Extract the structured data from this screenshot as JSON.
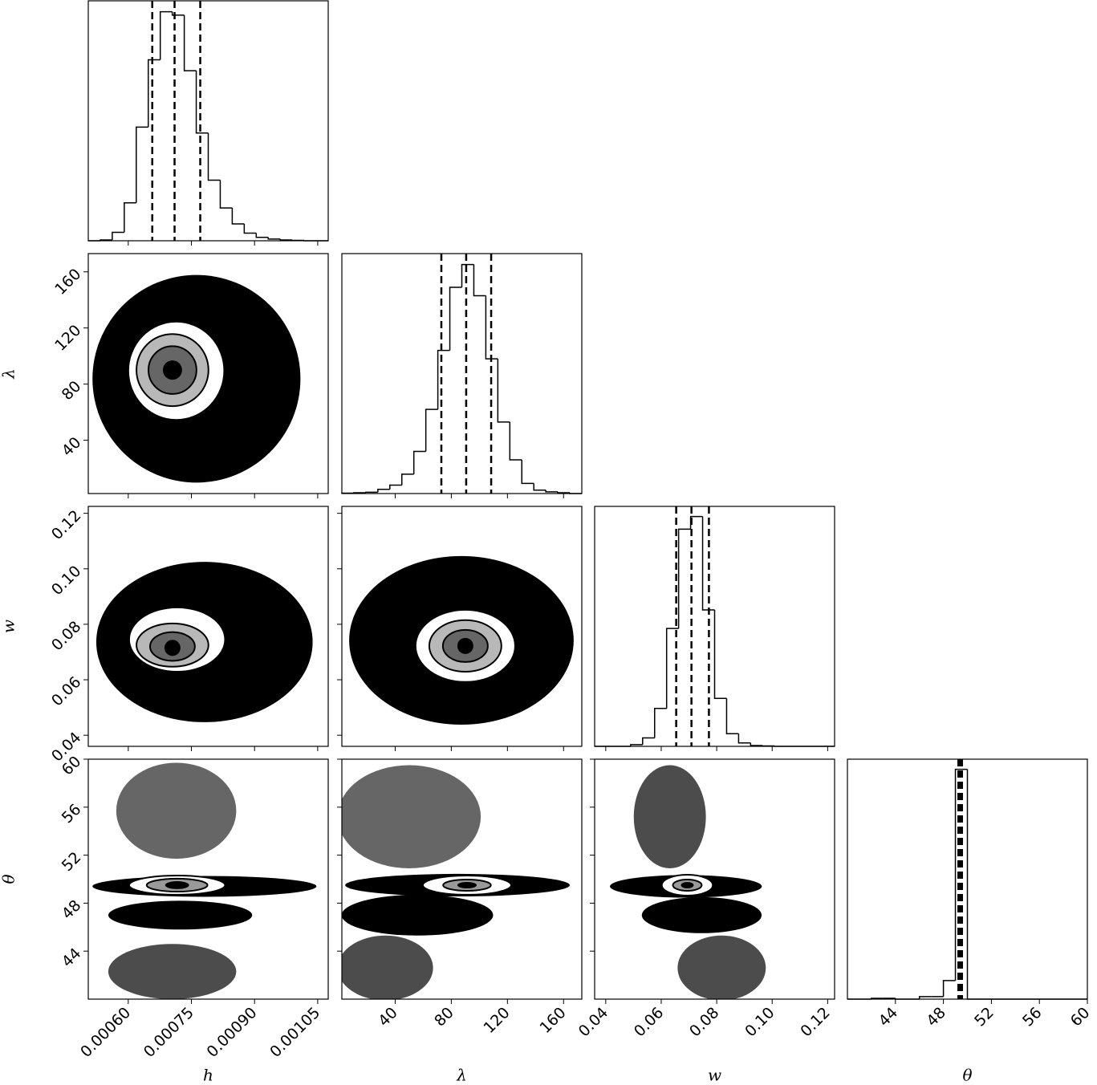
{
  "chart_data": {
    "type": "corner",
    "line_color": "#000000",
    "parameters": [
      {
        "label": "h",
        "lim": [
          0.000505,
          0.001075
        ],
        "ticks": [
          {
            "value": 0.0006,
            "label": "0.00060"
          },
          {
            "value": 0.00075,
            "label": "0.00075"
          },
          {
            "value": 0.0009,
            "label": "0.00090"
          },
          {
            "value": 0.00105,
            "label": "0.00105"
          }
        ],
        "bins": [
          0.000505,
          0.0005335,
          0.000562,
          0.0005905,
          0.000619,
          0.0006475,
          0.000676,
          0.0007045,
          0.000733,
          0.0007615,
          0.00079,
          0.0008185,
          0.000847,
          0.0008755,
          0.000904,
          0.0009325,
          0.000961,
          0.0009895,
          0.001018,
          0.0010465,
          0.001075
        ],
        "counts": [
          0,
          1,
          10,
          45,
          135,
          215,
          272,
          268,
          202,
          128,
          72,
          39,
          20,
          9,
          4,
          2,
          1,
          0.5,
          0,
          0
        ],
        "hist_ylim": [
          0,
          285
        ],
        "quantiles": [
          0.000657,
          0.00071,
          0.000771
        ]
      },
      {
        "label": "λ",
        "lim": [
          2,
          173
        ],
        "ticks": [
          40,
          80,
          120,
          160
        ],
        "bins": [
          2,
          10.55,
          19.1,
          27.65,
          36.2,
          44.75,
          53.3,
          61.85,
          70.4,
          78.95,
          87.5,
          96.05,
          104.6,
          113.15,
          121.7,
          130.25,
          138.8,
          147.35,
          155.9,
          164.45,
          173
        ],
        "counts": [
          0.5,
          1,
          1.5,
          5,
          10,
          23,
          50,
          100,
          170,
          245,
          272,
          235,
          160,
          85,
          40,
          12,
          4,
          2,
          1,
          0
        ],
        "hist_ylim": [
          0,
          285
        ],
        "quantiles": [
          72.9,
          90.6,
          108.4
        ]
      },
      {
        "label": "w",
        "lim": [
          0.036,
          0.1225
        ],
        "ticks": [
          0.04,
          0.06,
          0.08,
          {
            "value": 0.1,
            "label": "0.10"
          },
          0.12
        ],
        "bins": [
          0.036,
          0.040325,
          0.04465,
          0.048975,
          0.0533,
          0.057625,
          0.06195,
          0.066275,
          0.0706,
          0.074925,
          0.07925,
          0.083575,
          0.0879,
          0.092225,
          0.09655,
          0.100875,
          0.1052,
          0.109525,
          0.11385,
          0.118175,
          0.1225
        ],
        "counts": [
          0,
          0,
          0,
          2,
          10,
          45,
          140,
          258,
          273,
          162,
          57,
          15,
          4,
          1,
          0.5,
          0,
          0,
          0,
          0,
          0
        ],
        "hist_ylim": [
          0,
          285
        ],
        "quantiles": [
          0.0654,
          0.0709,
          0.0772
        ]
      },
      {
        "label": "θ",
        "lim": [
          40,
          60
        ],
        "ticks": [
          44,
          48,
          52,
          56,
          60
        ],
        "bins": [
          40,
          41,
          42,
          43,
          44,
          45,
          46,
          47,
          48,
          49,
          50,
          51,
          52,
          53,
          54,
          55,
          56,
          57,
          58,
          59,
          60
        ],
        "counts": [
          0,
          0,
          1,
          1,
          0,
          0,
          3,
          3,
          22,
          273,
          0,
          0,
          0,
          0,
          0,
          0,
          0,
          0,
          0,
          0
        ],
        "hist_ylim": [
          0,
          285
        ],
        "quantiles": [
          49.25,
          49.4,
          49.55
        ]
      }
    ],
    "panels": [
      {
        "x": 0,
        "y": 1,
        "ellipses": [
          {
            "cx": 0.000762,
            "cy": 83.8,
            "rx": 0.000247,
            "ry": 74,
            "color": "#000000",
            "opacity": 1,
            "outline": false
          },
          {
            "cx": 0.000714,
            "cy": 89.5,
            "rx": 0.000114,
            "ry": 35,
            "color": "#ffffff",
            "opacity": 1,
            "outline": true
          },
          {
            "cx": 0.000705,
            "cy": 90,
            "rx": 8.55e-05,
            "ry": 25.7,
            "color": "#b8b8b8",
            "opacity": 1,
            "outline": true
          },
          {
            "cx": 0.000705,
            "cy": 90,
            "rx": 5.7e-05,
            "ry": 17,
            "color": "#666666",
            "opacity": 1,
            "outline": true
          },
          {
            "cx": 0.000705,
            "cy": 90,
            "rx": 2.28e-05,
            "ry": 6.9,
            "color": "#000000",
            "opacity": 1,
            "outline": false
          }
        ]
      },
      {
        "x": 0,
        "y": 2,
        "ellipses": [
          {
            "cx": 0.000781,
            "cy": 0.0736,
            "rx": 0.000257,
            "ry": 0.0289,
            "color": "#000000",
            "opacity": 1,
            "outline": false
          },
          {
            "cx": 0.000716,
            "cy": 0.0745,
            "rx": 0.000114,
            "ry": 0.0116,
            "color": "#ffffff",
            "opacity": 1,
            "outline": true
          },
          {
            "cx": 0.000705,
            "cy": 0.0725,
            "rx": 8.55e-05,
            "ry": 0.0078,
            "color": "#b8b8b8",
            "opacity": 1,
            "outline": true
          },
          {
            "cx": 0.000705,
            "cy": 0.072,
            "rx": 5.32e-05,
            "ry": 0.0052,
            "color": "#666666",
            "opacity": 1,
            "outline": true
          },
          {
            "cx": 0.000705,
            "cy": 0.0715,
            "rx": 1.9e-05,
            "ry": 0.0029,
            "color": "#000000",
            "opacity": 1,
            "outline": false
          }
        ]
      },
      {
        "x": 1,
        "y": 2,
        "ellipses": [
          {
            "cx": 87.2,
            "cy": 0.0742,
            "rx": 80,
            "ry": 0.0304,
            "color": "#000000",
            "opacity": 1,
            "outline": false
          },
          {
            "cx": 90,
            "cy": 0.0722,
            "rx": 35.5,
            "ry": 0.013,
            "color": "#ffffff",
            "opacity": 1,
            "outline": true
          },
          {
            "cx": 90,
            "cy": 0.0722,
            "rx": 25.7,
            "ry": 0.0093,
            "color": "#b8b8b8",
            "opacity": 1,
            "outline": true
          },
          {
            "cx": 90,
            "cy": 0.0722,
            "rx": 16,
            "ry": 0.0058,
            "color": "#666666",
            "opacity": 1,
            "outline": true
          },
          {
            "cx": 90,
            "cy": 0.0722,
            "rx": 5.7,
            "ry": 0.0029,
            "color": "#000000",
            "opacity": 1,
            "outline": false
          }
        ]
      },
      {
        "x": 0,
        "y": 3,
        "ellipses": [
          {
            "cx": 0.000714,
            "cy": 55.7,
            "rx": 0.0001425,
            "ry": 4.0,
            "color": "#000000",
            "opacity": 0.6,
            "outline": false
          },
          {
            "cx": 0.0007045,
            "cy": 42.3,
            "rx": 0.000152,
            "ry": 2.3,
            "color": "#000000",
            "opacity": 0.7,
            "outline": false
          },
          {
            "cx": 0.0007235,
            "cy": 47.0,
            "rx": 0.000171,
            "ry": 1.2,
            "color": "#000000",
            "opacity": 1,
            "outline": false
          },
          {
            "cx": 0.000781,
            "cy": 49.4,
            "rx": 0.000266,
            "ry": 0.87,
            "color": "#000000",
            "opacity": 1,
            "outline": false
          },
          {
            "cx": 0.000716,
            "cy": 49.5,
            "rx": 0.000114,
            "ry": 0.8,
            "color": "#ffffff",
            "opacity": 1,
            "outline": true
          },
          {
            "cx": 0.000716,
            "cy": 49.5,
            "rx": 7.22e-05,
            "ry": 0.54,
            "color": "#999999",
            "opacity": 1,
            "outline": true
          },
          {
            "cx": 0.000716,
            "cy": 49.5,
            "rx": 2.85e-05,
            "ry": 0.33,
            "color": "#000000",
            "opacity": 1,
            "outline": false
          }
        ]
      },
      {
        "x": 1,
        "y": 3,
        "ellipses": [
          {
            "cx": 50,
            "cy": 55.2,
            "rx": 51,
            "ry": 4.3,
            "color": "#000000",
            "opacity": 0.6,
            "outline": false
          },
          {
            "cx": 33,
            "cy": 42.6,
            "rx": 34,
            "ry": 2.7,
            "color": "#000000",
            "opacity": 0.7,
            "outline": false
          },
          {
            "cx": 55.8,
            "cy": 47.0,
            "rx": 54,
            "ry": 1.7,
            "color": "#000000",
            "opacity": 1,
            "outline": false
          },
          {
            "cx": 84.4,
            "cy": 49.5,
            "rx": 80,
            "ry": 0.94,
            "color": "#000000",
            "opacity": 1,
            "outline": false
          },
          {
            "cx": 91.2,
            "cy": 49.5,
            "rx": 31.5,
            "ry": 0.8,
            "color": "#ffffff",
            "opacity": 1,
            "outline": true
          },
          {
            "cx": 91.2,
            "cy": 49.5,
            "rx": 17,
            "ry": 0.47,
            "color": "#999999",
            "opacity": 1,
            "outline": true
          },
          {
            "cx": 91.2,
            "cy": 49.5,
            "rx": 6.9,
            "ry": 0.27,
            "color": "#000000",
            "opacity": 1,
            "outline": false
          }
        ]
      },
      {
        "x": 2,
        "y": 3,
        "ellipses": [
          {
            "cx": 0.0631,
            "cy": 55.2,
            "rx": 0.013,
            "ry": 4.3,
            "color": "#000000",
            "opacity": 0.7,
            "outline": false
          },
          {
            "cx": 0.0818,
            "cy": 42.6,
            "rx": 0.0159,
            "ry": 2.7,
            "color": "#000000",
            "opacity": 0.7,
            "outline": false
          },
          {
            "cx": 0.0746,
            "cy": 47.0,
            "rx": 0.0216,
            "ry": 1.5,
            "color": "#000000",
            "opacity": 1,
            "outline": false
          },
          {
            "cx": 0.0689,
            "cy": 49.4,
            "rx": 0.0274,
            "ry": 0.94,
            "color": "#000000",
            "opacity": 1,
            "outline": false
          },
          {
            "cx": 0.0694,
            "cy": 49.5,
            "rx": 0.0092,
            "ry": 0.87,
            "color": "#ffffff",
            "opacity": 1,
            "outline": true
          },
          {
            "cx": 0.0694,
            "cy": 49.5,
            "rx": 0.0052,
            "ry": 0.47,
            "color": "#999999",
            "opacity": 1,
            "outline": true
          },
          {
            "cx": 0.0694,
            "cy": 49.5,
            "rx": 0.0023,
            "ry": 0.27,
            "color": "#000000",
            "opacity": 1,
            "outline": false
          }
        ]
      }
    ]
  }
}
